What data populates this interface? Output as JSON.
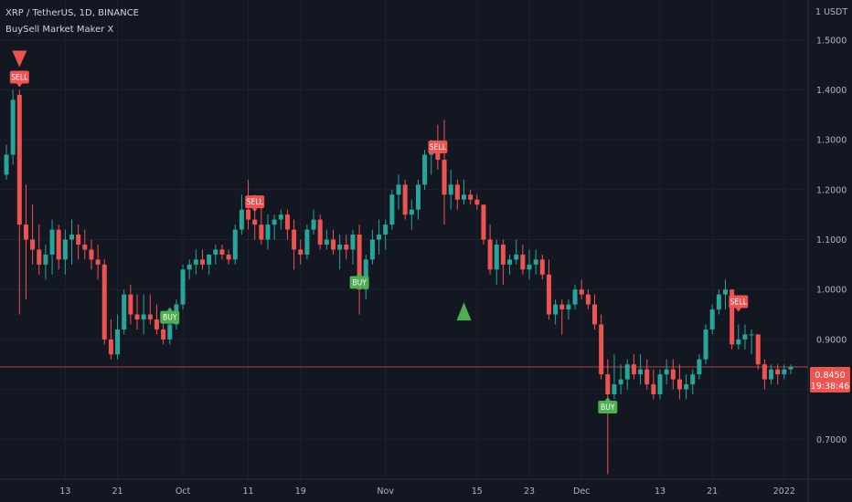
{
  "header": {
    "title": "XRP / TetherUS, 1D, BINANCE",
    "indicator": "BuySell Market Maker X"
  },
  "price_axis": {
    "currency_label": "1 USDT",
    "current_price": "0.8450",
    "countdown": "19:38:46"
  },
  "colors": {
    "background": "#131722",
    "grid": "#1e222d",
    "up": "#26a69a",
    "down": "#ef5350",
    "buy_label": "#4caf50",
    "sell_label": "#ef5350"
  },
  "chart_data": {
    "type": "candlestick",
    "symbol": "XRP / TetherUS",
    "interval": "1D",
    "exchange": "BINANCE",
    "y_ticks": [
      1.5,
      1.4,
      1.3,
      1.2,
      1.1,
      1.0,
      0.9,
      0.8,
      0.7
    ],
    "y_tick_labels": [
      "1.5000",
      "1.4000",
      "1.3000",
      "1.2000",
      "1.1000",
      "1.0000",
      "0.9000",
      "0.8000",
      "0.7000"
    ],
    "ylim": [
      0.62,
      1.58
    ],
    "x_tick_labels": [
      {
        "bar": 9,
        "label": "13"
      },
      {
        "bar": 17,
        "label": "21"
      },
      {
        "bar": 27,
        "label": "Oct"
      },
      {
        "bar": 37,
        "label": "11"
      },
      {
        "bar": 45,
        "label": "19"
      },
      {
        "bar": 58,
        "label": "Nov"
      },
      {
        "bar": 72,
        "label": "15"
      },
      {
        "bar": 80,
        "label": "23"
      },
      {
        "bar": 88,
        "label": "Dec"
      },
      {
        "bar": 100,
        "label": "13"
      },
      {
        "bar": 108,
        "label": "21"
      },
      {
        "bar": 119,
        "label": "2022"
      }
    ],
    "last_price": 0.845,
    "ohlc": [
      [
        1.23,
        1.29,
        1.22,
        1.27
      ],
      [
        1.27,
        1.4,
        1.25,
        1.38
      ],
      [
        1.39,
        1.4,
        0.95,
        1.13
      ],
      [
        1.13,
        1.21,
        0.98,
        1.1
      ],
      [
        1.1,
        1.17,
        1.05,
        1.08
      ],
      [
        1.08,
        1.13,
        1.03,
        1.05
      ],
      [
        1.05,
        1.09,
        1.02,
        1.07
      ],
      [
        1.07,
        1.14,
        1.03,
        1.12
      ],
      [
        1.12,
        1.13,
        1.04,
        1.06
      ],
      [
        1.06,
        1.12,
        1.03,
        1.1
      ],
      [
        1.1,
        1.14,
        1.05,
        1.11
      ],
      [
        1.11,
        1.13,
        1.06,
        1.09
      ],
      [
        1.09,
        1.12,
        1.06,
        1.08
      ],
      [
        1.08,
        1.1,
        1.04,
        1.06
      ],
      [
        1.06,
        1.09,
        1.02,
        1.05
      ],
      [
        1.05,
        1.06,
        0.89,
        0.9
      ],
      [
        0.9,
        0.94,
        0.86,
        0.87
      ],
      [
        0.87,
        0.95,
        0.86,
        0.92
      ],
      [
        0.92,
        1.0,
        0.91,
        0.99
      ],
      [
        0.99,
        1.01,
        0.93,
        0.95
      ],
      [
        0.95,
        0.99,
        0.92,
        0.94
      ],
      [
        0.94,
        0.99,
        0.91,
        0.95
      ],
      [
        0.95,
        0.99,
        0.93,
        0.94
      ],
      [
        0.94,
        0.97,
        0.91,
        0.92
      ],
      [
        0.92,
        0.95,
        0.89,
        0.9
      ],
      [
        0.9,
        0.95,
        0.89,
        0.93
      ],
      [
        0.93,
        0.98,
        0.92,
        0.97
      ],
      [
        0.97,
        1.05,
        0.96,
        1.04
      ],
      [
        1.04,
        1.06,
        1.02,
        1.05
      ],
      [
        1.05,
        1.08,
        1.03,
        1.06
      ],
      [
        1.06,
        1.08,
        1.04,
        1.05
      ],
      [
        1.05,
        1.07,
        1.03,
        1.07
      ],
      [
        1.07,
        1.09,
        1.05,
        1.08
      ],
      [
        1.08,
        1.09,
        1.06,
        1.07
      ],
      [
        1.07,
        1.08,
        1.05,
        1.06
      ],
      [
        1.06,
        1.13,
        1.05,
        1.12
      ],
      [
        1.12,
        1.19,
        1.11,
        1.16
      ],
      [
        1.16,
        1.22,
        1.12,
        1.14
      ],
      [
        1.14,
        1.19,
        1.1,
        1.13
      ],
      [
        1.13,
        1.18,
        1.09,
        1.1
      ],
      [
        1.1,
        1.15,
        1.08,
        1.13
      ],
      [
        1.13,
        1.15,
        1.1,
        1.14
      ],
      [
        1.14,
        1.16,
        1.12,
        1.15
      ],
      [
        1.15,
        1.16,
        1.1,
        1.12
      ],
      [
        1.12,
        1.14,
        1.04,
        1.08
      ],
      [
        1.08,
        1.1,
        1.05,
        1.07
      ],
      [
        1.07,
        1.13,
        1.06,
        1.12
      ],
      [
        1.12,
        1.16,
        1.11,
        1.14
      ],
      [
        1.14,
        1.15,
        1.08,
        1.09
      ],
      [
        1.09,
        1.12,
        1.08,
        1.1
      ],
      [
        1.1,
        1.12,
        1.07,
        1.08
      ],
      [
        1.08,
        1.11,
        1.04,
        1.09
      ],
      [
        1.09,
        1.11,
        1.06,
        1.08
      ],
      [
        1.08,
        1.12,
        1.05,
        1.11
      ],
      [
        1.11,
        1.13,
        0.95,
        1.0
      ],
      [
        1.0,
        1.07,
        0.98,
        1.06
      ],
      [
        1.06,
        1.12,
        1.05,
        1.1
      ],
      [
        1.1,
        1.14,
        1.07,
        1.11
      ],
      [
        1.11,
        1.14,
        1.08,
        1.13
      ],
      [
        1.13,
        1.2,
        1.12,
        1.19
      ],
      [
        1.19,
        1.23,
        1.16,
        1.21
      ],
      [
        1.21,
        1.22,
        1.14,
        1.15
      ],
      [
        1.15,
        1.18,
        1.12,
        1.16
      ],
      [
        1.16,
        1.22,
        1.14,
        1.21
      ],
      [
        1.21,
        1.28,
        1.2,
        1.27
      ],
      [
        1.27,
        1.3,
        1.23,
        1.29
      ],
      [
        1.29,
        1.33,
        1.24,
        1.26
      ],
      [
        1.26,
        1.34,
        1.13,
        1.19
      ],
      [
        1.19,
        1.24,
        1.16,
        1.21
      ],
      [
        1.21,
        1.22,
        1.16,
        1.18
      ],
      [
        1.18,
        1.22,
        1.17,
        1.19
      ],
      [
        1.19,
        1.2,
        1.17,
        1.18
      ],
      [
        1.18,
        1.19,
        1.16,
        1.17
      ],
      [
        1.17,
        1.17,
        1.09,
        1.1
      ],
      [
        1.1,
        1.13,
        1.03,
        1.04
      ],
      [
        1.04,
        1.1,
        1.01,
        1.09
      ],
      [
        1.09,
        1.1,
        1.01,
        1.05
      ],
      [
        1.05,
        1.07,
        1.03,
        1.06
      ],
      [
        1.06,
        1.1,
        1.05,
        1.07
      ],
      [
        1.07,
        1.09,
        1.03,
        1.04
      ],
      [
        1.04,
        1.08,
        1.02,
        1.05
      ],
      [
        1.05,
        1.08,
        1.03,
        1.06
      ],
      [
        1.06,
        1.07,
        1.02,
        1.03
      ],
      [
        1.03,
        1.06,
        0.94,
        0.95
      ],
      [
        0.95,
        0.98,
        0.93,
        0.97
      ],
      [
        0.97,
        0.98,
        0.91,
        0.96
      ],
      [
        0.96,
        0.98,
        0.94,
        0.97
      ],
      [
        0.97,
        1.01,
        0.96,
        1.0
      ],
      [
        1.0,
        1.02,
        0.98,
        0.99
      ],
      [
        0.99,
        1.0,
        0.96,
        0.97
      ],
      [
        0.97,
        0.99,
        0.92,
        0.93
      ],
      [
        0.93,
        0.95,
        0.82,
        0.83
      ],
      [
        0.83,
        0.86,
        0.63,
        0.79
      ],
      [
        0.79,
        0.87,
        0.78,
        0.81
      ],
      [
        0.81,
        0.85,
        0.79,
        0.82
      ],
      [
        0.82,
        0.86,
        0.8,
        0.85
      ],
      [
        0.85,
        0.87,
        0.82,
        0.83
      ],
      [
        0.83,
        0.87,
        0.81,
        0.84
      ],
      [
        0.84,
        0.86,
        0.8,
        0.81
      ],
      [
        0.81,
        0.84,
        0.78,
        0.79
      ],
      [
        0.79,
        0.84,
        0.78,
        0.83
      ],
      [
        0.83,
        0.86,
        0.81,
        0.84
      ],
      [
        0.84,
        0.86,
        0.8,
        0.82
      ],
      [
        0.82,
        0.85,
        0.78,
        0.8
      ],
      [
        0.8,
        0.83,
        0.78,
        0.81
      ],
      [
        0.81,
        0.84,
        0.79,
        0.83
      ],
      [
        0.83,
        0.87,
        0.82,
        0.86
      ],
      [
        0.86,
        0.93,
        0.85,
        0.92
      ],
      [
        0.92,
        0.97,
        0.91,
        0.96
      ],
      [
        0.96,
        1.0,
        0.95,
        0.99
      ],
      [
        0.99,
        1.02,
        0.96,
        1.0
      ],
      [
        1.0,
        1.0,
        0.88,
        0.89
      ],
      [
        0.89,
        0.93,
        0.88,
        0.9
      ],
      [
        0.9,
        0.93,
        0.88,
        0.91
      ],
      [
        0.91,
        0.92,
        0.87,
        0.91
      ],
      [
        0.91,
        0.91,
        0.84,
        0.85
      ],
      [
        0.85,
        0.86,
        0.8,
        0.82
      ],
      [
        0.82,
        0.85,
        0.81,
        0.84
      ],
      [
        0.84,
        0.85,
        0.81,
        0.83
      ],
      [
        0.83,
        0.85,
        0.82,
        0.84
      ],
      [
        0.84,
        0.85,
        0.83,
        0.845
      ]
    ],
    "signals": [
      {
        "type": "SELL",
        "bar": 2,
        "price": 1.4,
        "arrow": true
      },
      {
        "type": "SELL",
        "bar": 38,
        "price": 1.15
      },
      {
        "type": "BUY",
        "bar": 25,
        "price": 0.97
      },
      {
        "type": "BUY",
        "bar": 54,
        "price": 1.04
      },
      {
        "type": "SELL",
        "bar": 66,
        "price": 1.26
      },
      {
        "type": "BUY",
        "bar": 92,
        "price": 0.79
      },
      {
        "type": "SELL",
        "bar": 112,
        "price": 0.95
      }
    ],
    "triangle_markers": [
      {
        "bar": 70,
        "price": 0.96,
        "direction": "up"
      }
    ]
  }
}
